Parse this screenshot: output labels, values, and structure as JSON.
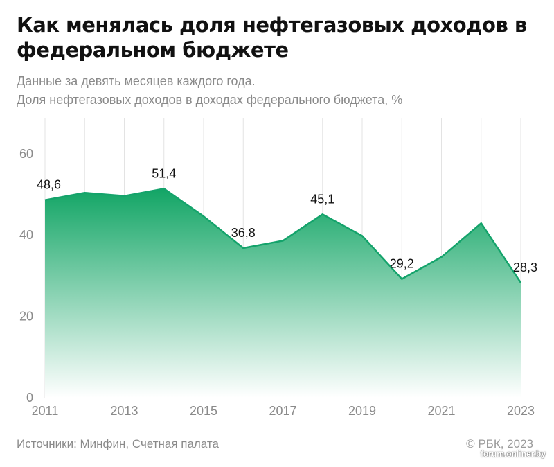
{
  "header": {
    "title": "Как менялась доля нефтегазовых доходов в федеральном бюджете",
    "subtitle_line1": "Данные за девять месяцев каждого года.",
    "subtitle_line2": "Доля нефтегазовых доходов в доходах федерального бюджета, %"
  },
  "footer": {
    "source": "Источники: Минфин, Счетная палата",
    "copyright": "© РБК, 2023",
    "watermark": "forum.onliner.by"
  },
  "colors": {
    "line": "#14a36b",
    "fill_top": "#12a565",
    "fill_bottom": "#ffffff",
    "grid": "#e3e3e3"
  },
  "chart_data": {
    "type": "area",
    "x": [
      2011,
      2012,
      2013,
      2014,
      2015,
      2016,
      2017,
      2018,
      2019,
      2020,
      2021,
      2022,
      2023
    ],
    "series": [
      {
        "values": [
          48.6,
          50.4,
          49.6,
          51.4,
          44.6,
          36.8,
          38.6,
          45.1,
          39.8,
          29.2,
          34.6,
          42.9,
          28.3
        ]
      }
    ],
    "data_labels": [
      {
        "x": 2011,
        "text": "48,6"
      },
      {
        "x": 2014,
        "text": "51,4"
      },
      {
        "x": 2016,
        "text": "36,8"
      },
      {
        "x": 2018,
        "text": "45,1"
      },
      {
        "x": 2020,
        "text": "29,2"
      },
      {
        "x": 2023,
        "text": "28,3"
      }
    ],
    "x_ticks": [
      {
        "x": 2011,
        "label": "2011"
      },
      {
        "x": 2013,
        "label": "2013"
      },
      {
        "x": 2015,
        "label": "2015"
      },
      {
        "x": 2017,
        "label": "2017"
      },
      {
        "x": 2019,
        "label": "2019"
      },
      {
        "x": 2021,
        "label": "2021"
      },
      {
        "x": 2023,
        "label": "2023"
      }
    ],
    "y_ticks": [
      {
        "y": 0,
        "label": "0"
      },
      {
        "y": 20,
        "label": "20"
      },
      {
        "y": 40,
        "label": "40"
      },
      {
        "y": 60,
        "label": "60"
      }
    ],
    "ylim": [
      0,
      68
    ],
    "xlim": [
      2011,
      2023
    ],
    "grid": "vertical"
  }
}
